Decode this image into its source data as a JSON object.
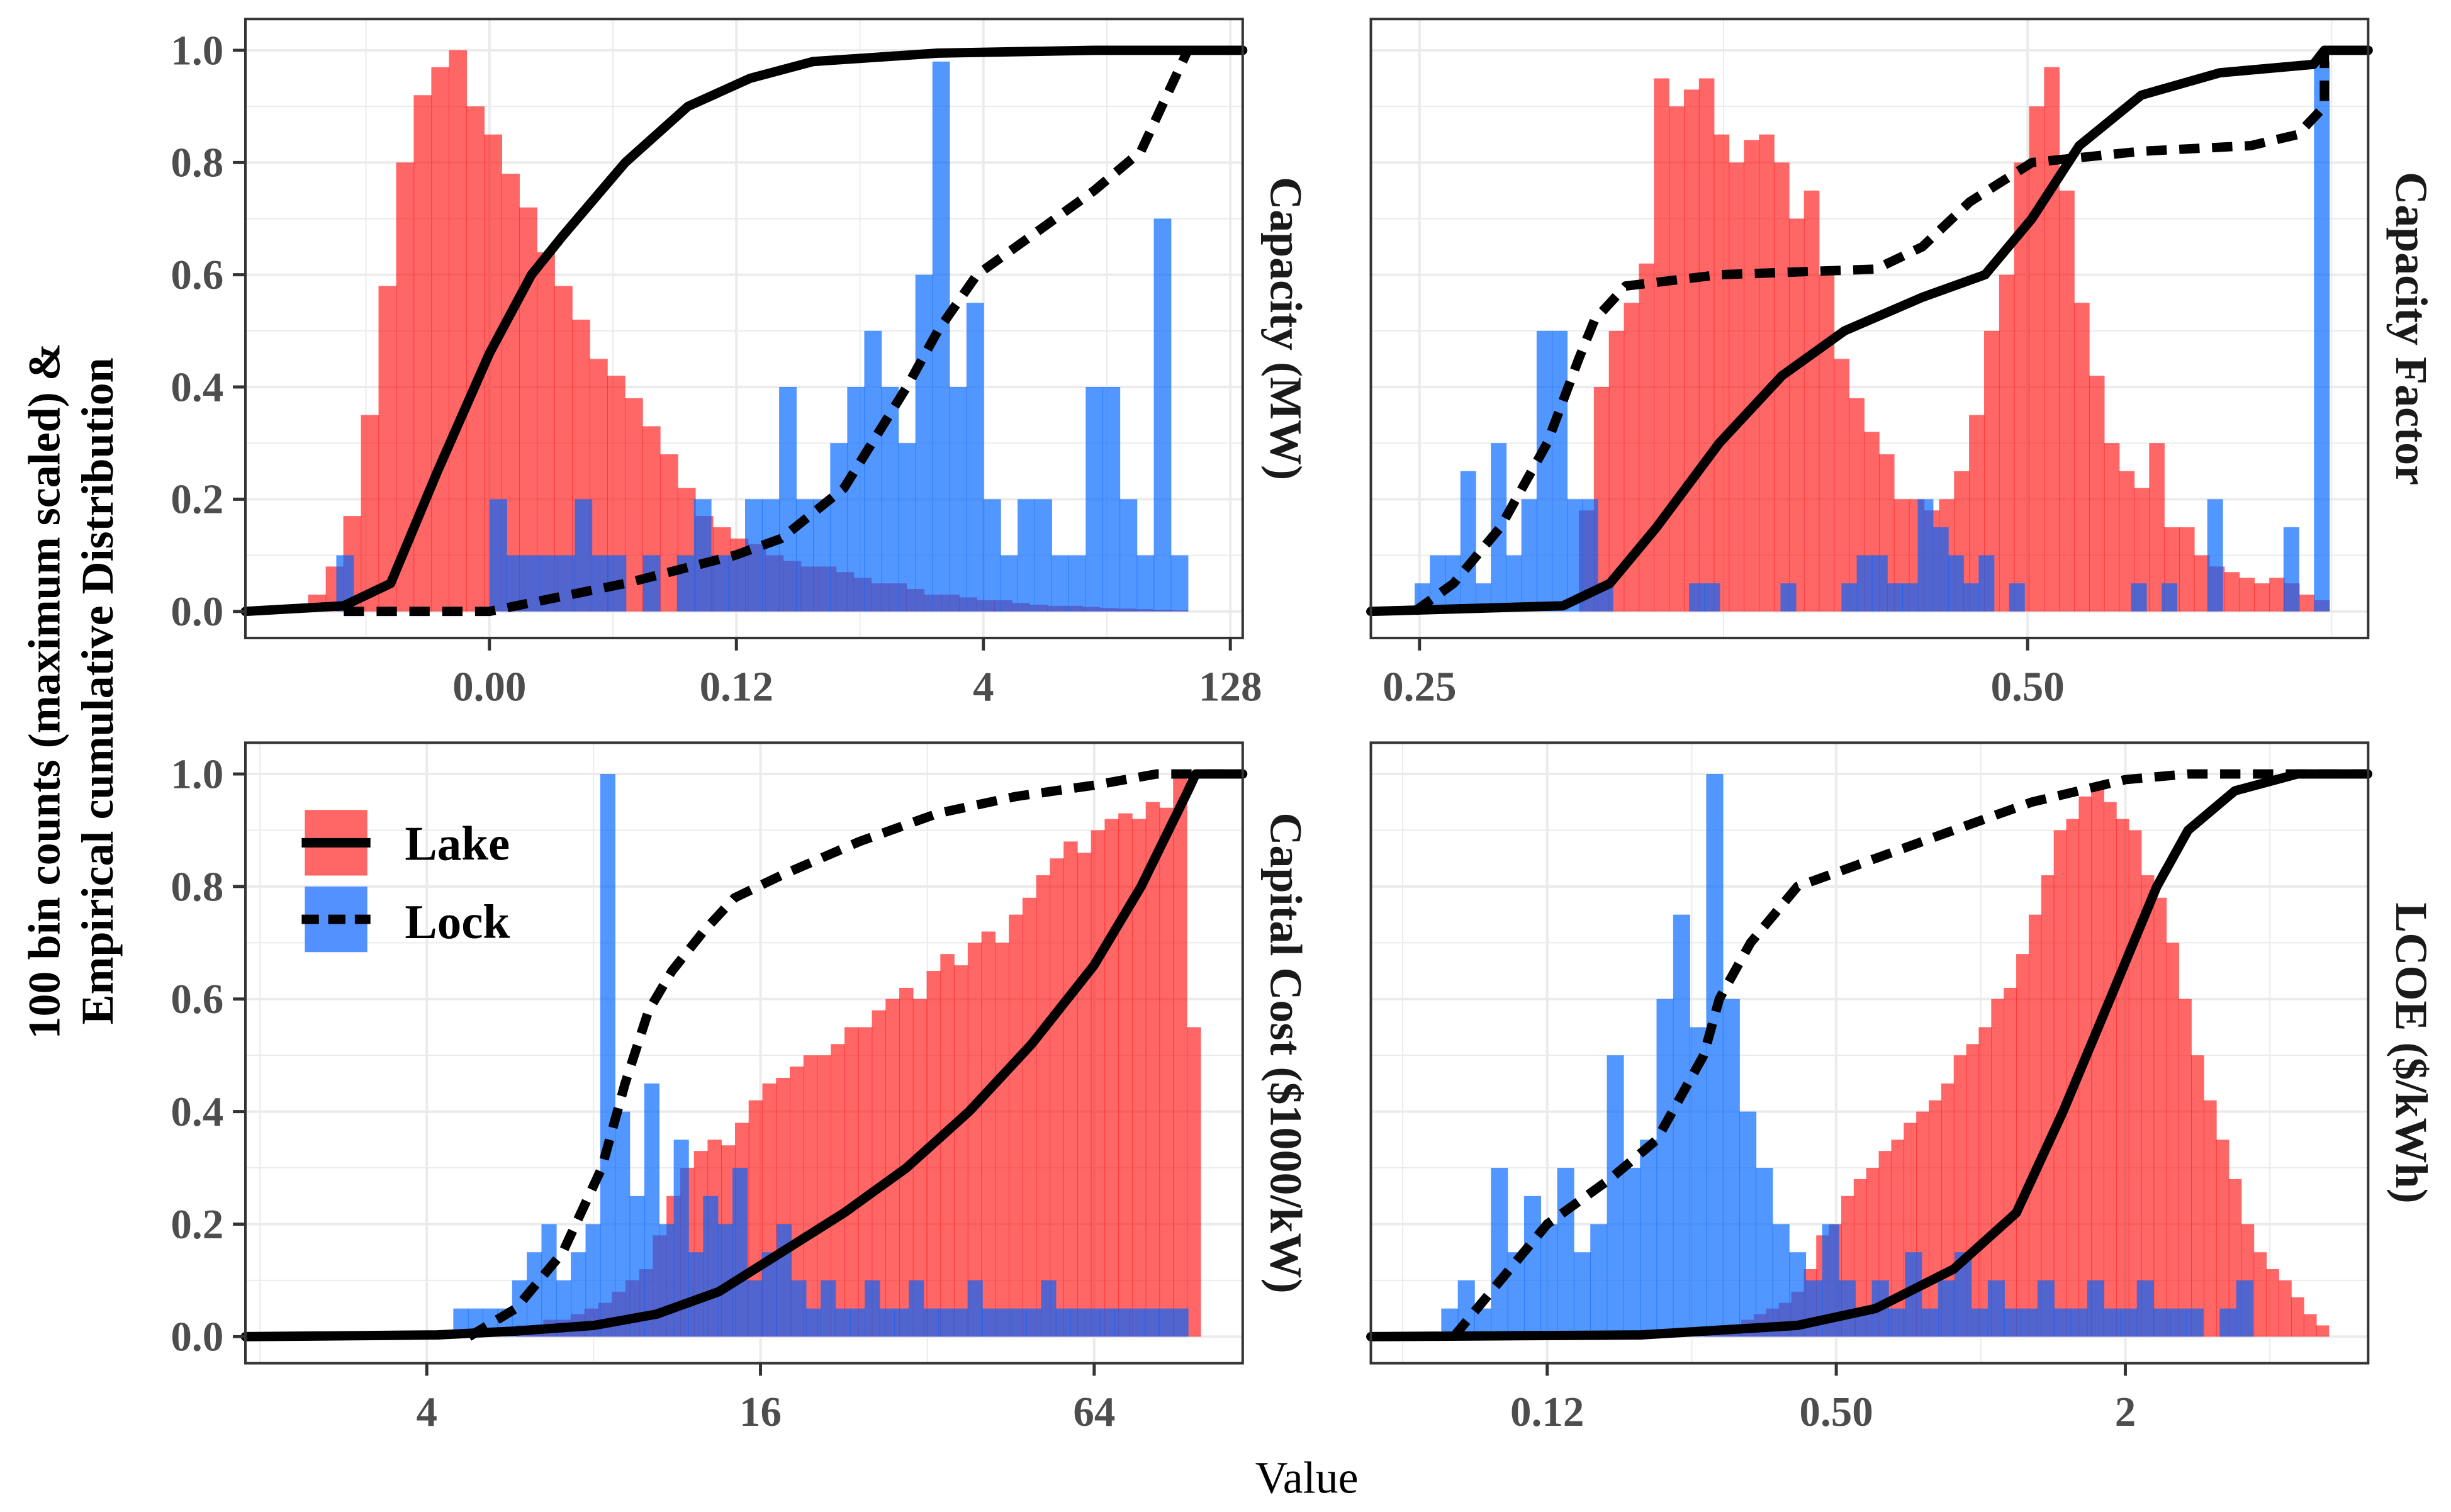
{
  "chart_data": {
    "type": "histogram+ecdf facets",
    "ylabel": [
      "100 bin counts (maximum scaled) &",
      "Empirical cumulative Distribution"
    ],
    "xlabel": "Value",
    "x_scale": "log2 (x values given as log2 of value)",
    "ylim": [
      0,
      1
    ],
    "yticks": [
      0.0,
      0.2,
      0.4,
      0.6,
      0.8,
      1.0
    ],
    "ytick_labels": [
      "0.0",
      "0.2",
      "0.4",
      "0.6",
      "0.8",
      "1.0"
    ],
    "grid": true,
    "legend": {
      "position": "inside bottom-left panel, top-left",
      "entries": [
        {
          "name": "Lake",
          "fill": "#FF6666",
          "line": "solid"
        },
        {
          "name": "Lock",
          "fill": "#5291FF",
          "line": "dashed"
        }
      ]
    },
    "colors": {
      "lake": "rgba(255,0,0,0.6)",
      "lock": "rgba(0,100,255,0.68)",
      "line": "#000000"
    },
    "panels": [
      {
        "strip": "Capacity (MW)",
        "xlim": [
          -12.94,
          7.25
        ],
        "xticks": [
          -8,
          -3,
          2,
          7
        ],
        "xtick_labels": [
          "0.00",
          "0.12",
          "4",
          "128"
        ],
        "lake_hist": {
          "range": [
            -11.67,
            6.14
          ],
          "values": [
            0.03,
            0.08,
            0.17,
            0.35,
            0.58,
            0.8,
            0.92,
            0.97,
            1.0,
            0.9,
            0.85,
            0.78,
            0.72,
            0.64,
            0.58,
            0.52,
            0.45,
            0.42,
            0.38,
            0.33,
            0.28,
            0.22,
            0.17,
            0.15,
            0.13,
            0.12,
            0.1,
            0.09,
            0.08,
            0.08,
            0.07,
            0.06,
            0.05,
            0.05,
            0.04,
            0.03,
            0.03,
            0.025,
            0.02,
            0.02,
            0.015,
            0.012,
            0.01,
            0.01,
            0.008,
            0.006,
            0.005,
            0.004,
            0.003,
            0.002
          ]
        },
        "lock_hist": {
          "range": [
            -11.1,
            6.14
          ],
          "values": [
            0.1,
            0,
            0,
            0,
            0,
            0,
            0,
            0,
            0,
            0.2,
            0.1,
            0.1,
            0.1,
            0.1,
            0.2,
            0.1,
            0.1,
            0,
            0.1,
            0,
            0.1,
            0.2,
            0.1,
            0.1,
            0.2,
            0.2,
            0.4,
            0.2,
            0.2,
            0.3,
            0.4,
            0.5,
            0.4,
            0.3,
            0.6,
            0.98,
            0.4,
            0.55,
            0.2,
            0.1,
            0.2,
            0.2,
            0.1,
            0.1,
            0.4,
            0.4,
            0.2,
            0.1,
            0.7,
            0.1
          ]
        },
        "lake_ecdf": [
          [
            -12.94,
            0
          ],
          [
            -10.95,
            0.01
          ],
          [
            -10.0,
            0.05
          ],
          [
            -9.05,
            0.25
          ],
          [
            -8.0,
            0.46
          ],
          [
            -7.15,
            0.6
          ],
          [
            -6.51,
            0.67
          ],
          [
            -5.25,
            0.8
          ],
          [
            -3.98,
            0.9
          ],
          [
            -2.72,
            0.95
          ],
          [
            -1.45,
            0.98
          ],
          [
            1.08,
            0.995
          ],
          [
            4.24,
            1
          ],
          [
            7.25,
            1
          ]
        ],
        "lock_ecdf": [
          [
            -10.95,
            0
          ],
          [
            -8.0,
            0
          ],
          [
            -7.46,
            0.01
          ],
          [
            -5.25,
            0.05
          ],
          [
            -3.03,
            0.1
          ],
          [
            -2.09,
            0.13
          ],
          [
            -0.82,
            0.22
          ],
          [
            0.45,
            0.4
          ],
          [
            1.08,
            0.5
          ],
          [
            1.87,
            0.6
          ],
          [
            2.98,
            0.67
          ],
          [
            4.24,
            0.75
          ],
          [
            5.19,
            0.82
          ],
          [
            6.14,
            1.0
          ]
        ]
      },
      {
        "strip": "Capacity Factor",
        "xlim": [
          -2.08,
          -0.44
        ],
        "xticks": [
          -2,
          -1
        ],
        "xtick_labels": [
          "0.25",
          "0.50"
        ],
        "lake_hist": {
          "range": [
            -1.738,
            -0.504
          ],
          "values": [
            0.18,
            0.4,
            0.5,
            0.55,
            0.62,
            0.95,
            0.9,
            0.93,
            0.95,
            0.85,
            0.8,
            0.84,
            0.85,
            0.8,
            0.7,
            0.75,
            0.6,
            0.45,
            0.38,
            0.32,
            0.28,
            0.2,
            0.2,
            0.18,
            0.2,
            0.25,
            0.35,
            0.5,
            0.6,
            0.8,
            0.9,
            0.97,
            0.75,
            0.55,
            0.42,
            0.3,
            0.25,
            0.22,
            0.3,
            0.15,
            0.15,
            0.1,
            0.08,
            0.07,
            0.06,
            0.05,
            0.06,
            0.05,
            0.03,
            0.02
          ]
        },
        "lock_hist": {
          "range": [
            -2.008,
            -0.504
          ],
          "values": [
            0.05,
            0.1,
            0.1,
            0.25,
            0.05,
            0.3,
            0.1,
            0.2,
            0.5,
            0.5,
            0.2,
            0.2,
            0.05,
            0,
            0,
            0,
            0,
            0,
            0.05,
            0.05,
            0,
            0,
            0,
            0,
            0.05,
            0,
            0,
            0,
            0.05,
            0.1,
            0.1,
            0.05,
            0.05,
            0.2,
            0.15,
            0.1,
            0.05,
            0.1,
            0,
            0.05,
            0,
            0,
            0,
            0,
            0,
            0,
            0,
            0.05,
            0,
            0.05,
            0,
            0,
            0.2,
            0,
            0,
            0,
            0,
            0.15,
            0,
            0.98
          ]
        },
        "lake_ecdf": [
          [
            -2.08,
            0
          ],
          [
            -1.764,
            0.01
          ],
          [
            -1.687,
            0.05
          ],
          [
            -1.61,
            0.15
          ],
          [
            -1.507,
            0.3
          ],
          [
            -1.404,
            0.42
          ],
          [
            -1.301,
            0.5
          ],
          [
            -1.173,
            0.56
          ],
          [
            -1.07,
            0.6
          ],
          [
            -0.993,
            0.7
          ],
          [
            -0.915,
            0.83
          ],
          [
            -0.813,
            0.92
          ],
          [
            -0.684,
            0.96
          ],
          [
            -0.53,
            0.975
          ],
          [
            -0.512,
            1.0
          ],
          [
            -0.44,
            1.0
          ]
        ],
        "lock_ecdf": [
          [
            -2.008,
            0
          ],
          [
            -1.944,
            0.05
          ],
          [
            -1.867,
            0.15
          ],
          [
            -1.79,
            0.3
          ],
          [
            -1.738,
            0.45
          ],
          [
            -1.712,
            0.52
          ],
          [
            -1.661,
            0.58
          ],
          [
            -1.507,
            0.6
          ],
          [
            -1.25,
            0.61
          ],
          [
            -1.173,
            0.65
          ],
          [
            -1.095,
            0.73
          ],
          [
            -0.993,
            0.8
          ],
          [
            -0.813,
            0.82
          ],
          [
            -0.633,
            0.83
          ],
          [
            -0.556,
            0.85
          ],
          [
            -0.512,
            0.9
          ],
          [
            -0.512,
            1.0
          ]
        ]
      },
      {
        "strip": "Capital Cost ($1000/kW)",
        "xlim": [
          0.913,
          6.89
        ],
        "xticks": [
          2,
          4,
          6
        ],
        "xtick_labels": [
          "4",
          "16",
          "64"
        ],
        "lake_hist": {
          "range": [
            2.534,
            6.637
          ],
          "values": [
            0.02,
            0.02,
            0.03,
            0.03,
            0.04,
            0.05,
            0.06,
            0.08,
            0.1,
            0.12,
            0.18,
            0.25,
            0.3,
            0.33,
            0.35,
            0.34,
            0.38,
            0.42,
            0.45,
            0.46,
            0.48,
            0.5,
            0.5,
            0.52,
            0.55,
            0.55,
            0.58,
            0.6,
            0.62,
            0.6,
            0.65,
            0.68,
            0.66,
            0.7,
            0.72,
            0.7,
            0.75,
            0.78,
            0.82,
            0.85,
            0.88,
            0.86,
            0.9,
            0.92,
            0.93,
            0.92,
            0.95,
            0.94,
            1.0,
            0.55
          ]
        },
        "lock_hist": {
          "range": [
            2.159,
            6.562
          ],
          "values": [
            0.05,
            0.05,
            0.05,
            0.05,
            0.1,
            0.15,
            0.2,
            0.1,
            0.15,
            0.2,
            1.0,
            0.4,
            0.25,
            0.45,
            0.2,
            0.35,
            0.15,
            0.25,
            0.2,
            0.3,
            0.1,
            0.15,
            0.2,
            0.1,
            0.05,
            0.1,
            0.05,
            0.05,
            0.1,
            0.05,
            0.05,
            0.1,
            0.05,
            0.05,
            0.05,
            0.1,
            0.05,
            0.05,
            0.05,
            0.05,
            0.1,
            0.05,
            0.05,
            0.05,
            0.05,
            0.05,
            0.05,
            0.05,
            0.05,
            0.05
          ]
        },
        "lake_ecdf": [
          [
            0.913,
            0
          ],
          [
            2.065,
            0.003
          ],
          [
            2.534,
            0.01
          ],
          [
            3.002,
            0.02
          ],
          [
            3.377,
            0.04
          ],
          [
            3.751,
            0.08
          ],
          [
            4.126,
            0.15
          ],
          [
            4.501,
            0.22
          ],
          [
            4.875,
            0.3
          ],
          [
            5.25,
            0.4
          ],
          [
            5.625,
            0.52
          ],
          [
            5.999,
            0.66
          ],
          [
            6.281,
            0.8
          ],
          [
            6.562,
            0.97
          ],
          [
            6.609,
            1.0
          ],
          [
            6.89,
            1.0
          ]
        ],
        "lock_ecdf": [
          [
            2.253,
            0
          ],
          [
            2.534,
            0.05
          ],
          [
            2.815,
            0.15
          ],
          [
            3.049,
            0.3
          ],
          [
            3.189,
            0.45
          ],
          [
            3.33,
            0.58
          ],
          [
            3.47,
            0.65
          ],
          [
            3.658,
            0.72
          ],
          [
            3.845,
            0.78
          ],
          [
            4.126,
            0.82
          ],
          [
            4.594,
            0.88
          ],
          [
            5.063,
            0.93
          ],
          [
            5.531,
            0.96
          ],
          [
            5.999,
            0.98
          ],
          [
            6.374,
            1.0
          ],
          [
            6.89,
            1.0
          ]
        ]
      },
      {
        "strip": "LCOE ($/kWh)",
        "xlim": [
          -4.22,
          2.68
        ],
        "xticks": [
          -3,
          -1,
          1
        ],
        "xtick_labels": [
          "0.12",
          "0.50",
          "2"
        ],
        "lake_hist": {
          "range": [
            -1.917,
            2.407
          ],
          "values": [
            0.01,
            0.02,
            0.02,
            0.03,
            0.04,
            0.05,
            0.06,
            0.08,
            0.12,
            0.18,
            0.2,
            0.25,
            0.28,
            0.3,
            0.33,
            0.35,
            0.38,
            0.4,
            0.42,
            0.45,
            0.5,
            0.52,
            0.55,
            0.6,
            0.62,
            0.68,
            0.75,
            0.82,
            0.9,
            0.92,
            0.96,
            0.98,
            0.95,
            0.92,
            0.9,
            0.82,
            0.78,
            0.7,
            0.6,
            0.5,
            0.42,
            0.35,
            0.28,
            0.2,
            0.15,
            0.12,
            0.1,
            0.07,
            0.04,
            0.02
          ]
        },
        "lock_hist": {
          "range": [
            -3.733,
            1.996
          ],
          "values": [
            0.05,
            0.1,
            0.05,
            0.3,
            0.15,
            0.25,
            0.2,
            0.3,
            0.15,
            0.2,
            0.5,
            0.3,
            0.35,
            0.6,
            0.75,
            0.55,
            1.0,
            0.6,
            0.4,
            0.3,
            0.2,
            0.15,
            0.1,
            0.2,
            0.1,
            0.05,
            0.1,
            0.05,
            0.15,
            0.05,
            0.1,
            0.15,
            0.05,
            0.1,
            0.05,
            0.05,
            0.1,
            0.05,
            0.05,
            0.1,
            0.05,
            0.05,
            0.1,
            0.05,
            0.05,
            0.05,
            0,
            0.05,
            0.1,
            0
          ]
        },
        "lake_ecdf": [
          [
            -4.22,
            0
          ],
          [
            -2.35,
            0.003
          ],
          [
            -1.269,
            0.02
          ],
          [
            -0.728,
            0.05
          ],
          [
            -0.188,
            0.12
          ],
          [
            0.245,
            0.22
          ],
          [
            0.569,
            0.4
          ],
          [
            0.894,
            0.6
          ],
          [
            1.218,
            0.8
          ],
          [
            1.434,
            0.9
          ],
          [
            1.758,
            0.97
          ],
          [
            2.191,
            1.0
          ],
          [
            2.677,
            1.0
          ]
        ],
        "lock_ecdf": [
          [
            -3.647,
            0
          ],
          [
            -3.323,
            0.1
          ],
          [
            -3.0,
            0.2
          ],
          [
            -2.566,
            0.28
          ],
          [
            -2.242,
            0.35
          ],
          [
            -1.917,
            0.5
          ],
          [
            -1.809,
            0.6
          ],
          [
            -1.593,
            0.7
          ],
          [
            -1.269,
            0.8
          ],
          [
            -0.728,
            0.85
          ],
          [
            -0.188,
            0.9
          ],
          [
            0.353,
            0.95
          ],
          [
            1.002,
            0.99
          ],
          [
            1.434,
            1.0
          ],
          [
            2.677,
            1.0
          ]
        ]
      }
    ]
  }
}
